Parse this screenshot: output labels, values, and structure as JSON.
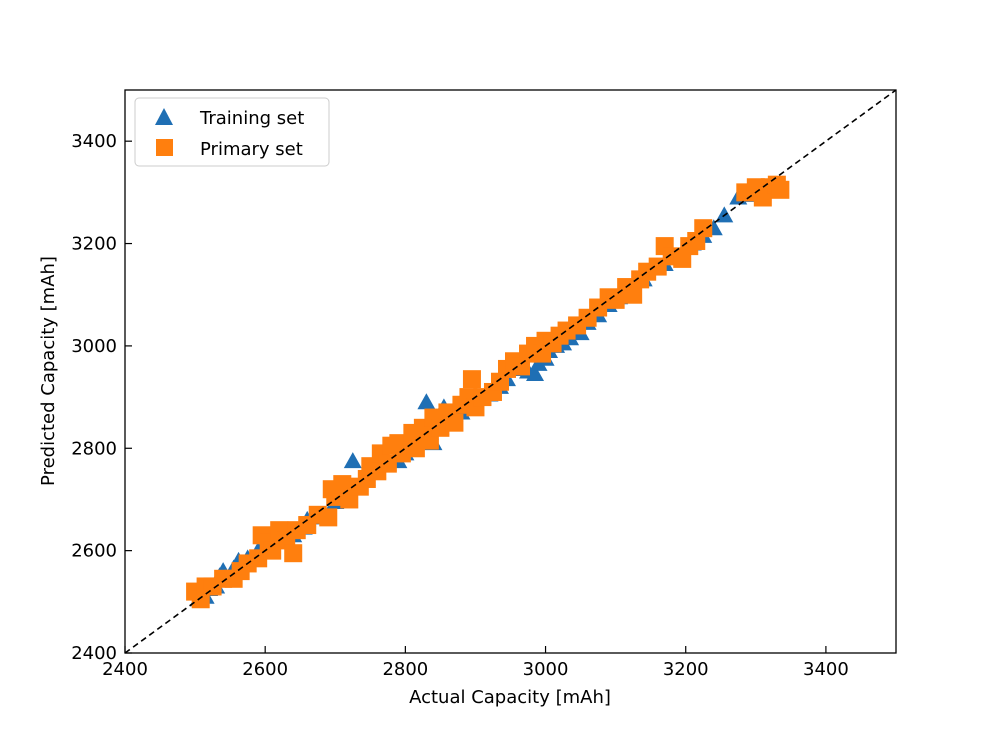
{
  "chart_data": {
    "type": "scatter",
    "xlabel": "Actual Capacity [mAh]",
    "ylabel": "Predicted Capacity [mAh]",
    "xlim": [
      2400,
      3500
    ],
    "ylim": [
      2400,
      3500
    ],
    "xticks": [
      "2400",
      "2600",
      "2800",
      "3000",
      "3200",
      "3400"
    ],
    "yticks": [
      "2400",
      "2600",
      "2800",
      "3000",
      "3200",
      "3400"
    ],
    "reference_line": "y = x (dashed)",
    "legend_position": "upper-left",
    "grid": false,
    "series": [
      {
        "name": "Training set",
        "marker": "triangle",
        "color": "#1f6fb4",
        "points": [
          [
            2505,
            2505
          ],
          [
            2515,
            2510
          ],
          [
            2520,
            2525
          ],
          [
            2530,
            2530
          ],
          [
            2535,
            2550
          ],
          [
            2540,
            2560
          ],
          [
            2548,
            2545
          ],
          [
            2555,
            2565
          ],
          [
            2562,
            2580
          ],
          [
            2575,
            2585
          ],
          [
            2590,
            2600
          ],
          [
            2605,
            2605
          ],
          [
            2620,
            2625
          ],
          [
            2640,
            2630
          ],
          [
            2655,
            2645
          ],
          [
            2660,
            2660
          ],
          [
            2680,
            2665
          ],
          [
            2700,
            2695
          ],
          [
            2710,
            2700
          ],
          [
            2725,
            2775
          ],
          [
            2735,
            2730
          ],
          [
            2745,
            2740
          ],
          [
            2760,
            2755
          ],
          [
            2775,
            2770
          ],
          [
            2790,
            2775
          ],
          [
            2800,
            2790
          ],
          [
            2815,
            2810
          ],
          [
            2830,
            2890
          ],
          [
            2835,
            2830
          ],
          [
            2840,
            2810
          ],
          [
            2850,
            2840
          ],
          [
            2855,
            2880
          ],
          [
            2860,
            2860
          ],
          [
            2870,
            2865
          ],
          [
            2880,
            2870
          ],
          [
            2895,
            2890
          ],
          [
            2905,
            2900
          ],
          [
            2920,
            2905
          ],
          [
            2935,
            2920
          ],
          [
            2945,
            2935
          ],
          [
            2960,
            2955
          ],
          [
            2975,
            2950
          ],
          [
            2985,
            2945
          ],
          [
            2990,
            2965
          ],
          [
            3000,
            2975
          ],
          [
            3005,
            2990
          ],
          [
            3015,
            3000
          ],
          [
            3025,
            3005
          ],
          [
            3035,
            3015
          ],
          [
            3050,
            3025
          ],
          [
            3060,
            3045
          ],
          [
            3075,
            3060
          ],
          [
            3090,
            3080
          ],
          [
            3105,
            3095
          ],
          [
            3120,
            3110
          ],
          [
            3140,
            3130
          ],
          [
            3160,
            3155
          ],
          [
            3170,
            3160
          ],
          [
            3190,
            3175
          ],
          [
            3210,
            3200
          ],
          [
            3225,
            3215
          ],
          [
            3240,
            3230
          ],
          [
            3255,
            3255
          ],
          [
            3275,
            3290
          ],
          [
            3290,
            3295
          ],
          [
            3305,
            3305
          ],
          [
            3320,
            3310
          ]
        ]
      },
      {
        "name": "Primary set",
        "marker": "square",
        "color": "#ff7f0e",
        "points": [
          [
            2500,
            2520
          ],
          [
            2508,
            2505
          ],
          [
            2515,
            2530
          ],
          [
            2525,
            2530
          ],
          [
            2540,
            2545
          ],
          [
            2555,
            2545
          ],
          [
            2565,
            2560
          ],
          [
            2575,
            2575
          ],
          [
            2590,
            2585
          ],
          [
            2595,
            2630
          ],
          [
            2605,
            2615
          ],
          [
            2610,
            2600
          ],
          [
            2620,
            2640
          ],
          [
            2630,
            2620
          ],
          [
            2640,
            2595
          ],
          [
            2645,
            2640
          ],
          [
            2660,
            2650
          ],
          [
            2675,
            2670
          ],
          [
            2690,
            2665
          ],
          [
            2695,
            2720
          ],
          [
            2700,
            2705
          ],
          [
            2710,
            2730
          ],
          [
            2720,
            2700
          ],
          [
            2735,
            2725
          ],
          [
            2745,
            2740
          ],
          [
            2750,
            2765
          ],
          [
            2760,
            2755
          ],
          [
            2765,
            2790
          ],
          [
            2775,
            2770
          ],
          [
            2780,
            2805
          ],
          [
            2790,
            2810
          ],
          [
            2795,
            2790
          ],
          [
            2810,
            2830
          ],
          [
            2815,
            2800
          ],
          [
            2825,
            2840
          ],
          [
            2835,
            2815
          ],
          [
            2840,
            2860
          ],
          [
            2850,
            2840
          ],
          [
            2860,
            2870
          ],
          [
            2870,
            2850
          ],
          [
            2880,
            2885
          ],
          [
            2890,
            2900
          ],
          [
            2895,
            2935
          ],
          [
            2900,
            2880
          ],
          [
            2910,
            2900
          ],
          [
            2925,
            2910
          ],
          [
            2935,
            2930
          ],
          [
            2945,
            2955
          ],
          [
            2955,
            2970
          ],
          [
            2965,
            2960
          ],
          [
            2975,
            2985
          ],
          [
            2985,
            3000
          ],
          [
            2995,
            2985
          ],
          [
            3000,
            3010
          ],
          [
            3010,
            3005
          ],
          [
            3020,
            3020
          ],
          [
            3030,
            3030
          ],
          [
            3045,
            3040
          ],
          [
            3060,
            3055
          ],
          [
            3075,
            3075
          ],
          [
            3090,
            3095
          ],
          [
            3100,
            3090
          ],
          [
            3115,
            3115
          ],
          [
            3125,
            3100
          ],
          [
            3135,
            3130
          ],
          [
            3145,
            3145
          ],
          [
            3160,
            3155
          ],
          [
            3170,
            3195
          ],
          [
            3180,
            3175
          ],
          [
            3195,
            3170
          ],
          [
            3205,
            3195
          ],
          [
            3215,
            3205
          ],
          [
            3225,
            3230
          ],
          [
            3285,
            3300
          ],
          [
            3300,
            3310
          ],
          [
            3310,
            3290
          ],
          [
            3320,
            3310
          ],
          [
            3330,
            3315
          ],
          [
            3335,
            3305
          ]
        ]
      }
    ]
  }
}
